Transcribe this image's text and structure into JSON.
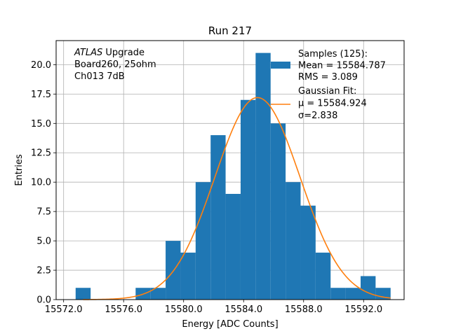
{
  "chart_data": {
    "type": "bar",
    "title": "Run 217",
    "xlabel": "Energy [ADC Counts]",
    "ylabel": "Entries",
    "xlim": [
      15571.5,
      15594.7
    ],
    "ylim": [
      0,
      22.05
    ],
    "xticks": [
      15572.0,
      15576.0,
      15580.0,
      15584.0,
      15588.0,
      15592.0
    ],
    "xtick_labels": [
      "15572.0",
      "15576.0",
      "15580.0",
      "15584.0",
      "15588.0",
      "15592.0"
    ],
    "yticks": [
      0.0,
      2.5,
      5.0,
      7.5,
      10.0,
      12.5,
      15.0,
      17.5,
      20.0
    ],
    "ytick_labels": [
      "0.0",
      "2.5",
      "5.0",
      "7.5",
      "10.0",
      "12.5",
      "15.0",
      "17.5",
      "20.0"
    ],
    "grid": true,
    "legend_placement": "top-right",
    "bin_edges": [
      15572.8,
      15573.8,
      15574.8,
      15575.8,
      15576.8,
      15577.8,
      15578.8,
      15579.8,
      15580.8,
      15581.8,
      15582.8,
      15583.8,
      15584.8,
      15585.8,
      15586.8,
      15587.8,
      15588.8,
      15589.8,
      15590.8,
      15591.8,
      15592.8,
      15593.8
    ],
    "series": [
      {
        "name": "Samples (125):\n Mean = 15584.787\n RMS = 3.089",
        "type": "histogram",
        "color": "#1f77b4",
        "values": [
          1,
          0,
          0,
          0,
          1,
          1,
          5,
          4,
          10,
          14,
          9,
          17,
          21,
          15,
          10,
          8,
          4,
          1,
          1,
          2,
          1
        ]
      },
      {
        "name": "Gaussian Fit:\n μ = 15584.924\n σ=2.838",
        "type": "line",
        "color": "#ff7f0e",
        "mu": 15584.924,
        "sigma": 2.838,
        "peak": 17.2,
        "x_range": [
          15573.3,
          15593.8
        ]
      }
    ],
    "annotations": [
      {
        "lines": [
          "ATLAS Upgrade",
          " Board260, 25ohm",
          " Ch013 7dB"
        ],
        "italic_word": "ATLAS"
      }
    ]
  }
}
